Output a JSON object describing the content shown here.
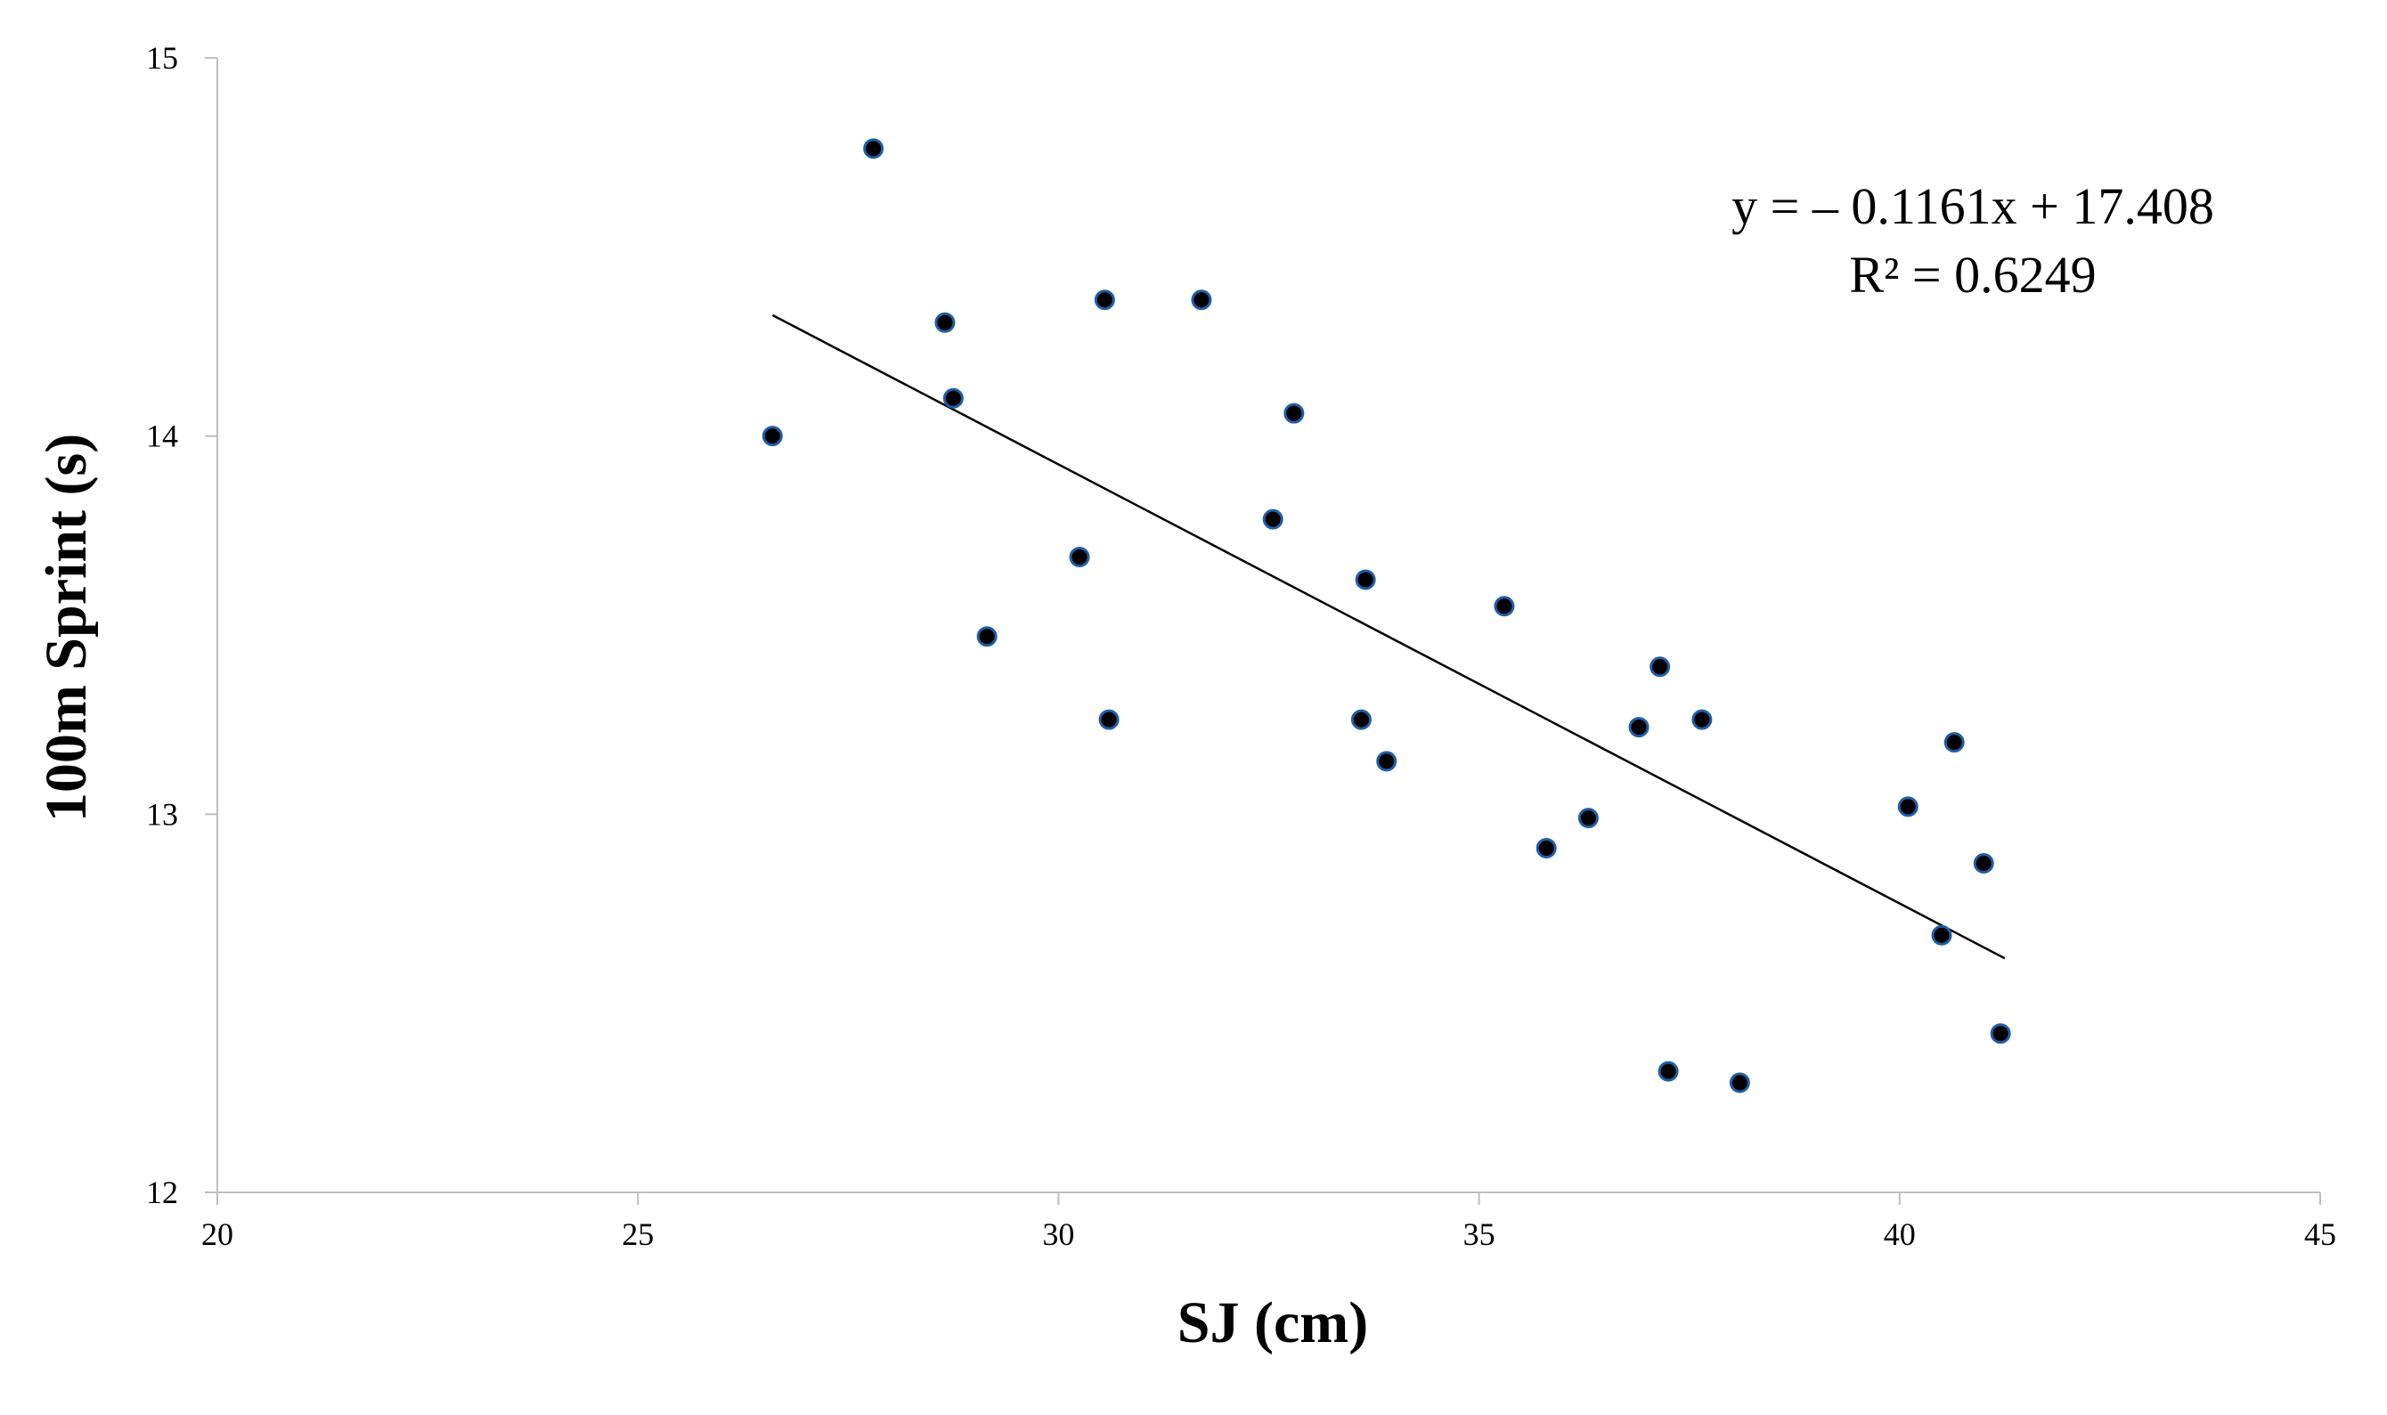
{
  "chart_data": {
    "type": "scatter",
    "title": "",
    "xlabel": "SJ (cm)",
    "ylabel": "100m Sprint (s)",
    "xlim": [
      20,
      45
    ],
    "ylim": [
      12,
      15
    ],
    "xticks": [
      "20",
      "25",
      "30",
      "35",
      "40",
      "45"
    ],
    "yticks": [
      "12",
      "13",
      "14",
      "15"
    ],
    "grid": false,
    "points": [
      {
        "x": 26.6,
        "y": 14.0
      },
      {
        "x": 27.8,
        "y": 14.76
      },
      {
        "x": 28.65,
        "y": 14.3
      },
      {
        "x": 28.75,
        "y": 14.1
      },
      {
        "x": 29.15,
        "y": 13.47
      },
      {
        "x": 30.25,
        "y": 13.68
      },
      {
        "x": 30.55,
        "y": 14.36
      },
      {
        "x": 30.6,
        "y": 13.25
      },
      {
        "x": 31.7,
        "y": 14.36
      },
      {
        "x": 32.55,
        "y": 13.78
      },
      {
        "x": 32.8,
        "y": 14.06
      },
      {
        "x": 33.6,
        "y": 13.25
      },
      {
        "x": 33.65,
        "y": 13.62
      },
      {
        "x": 33.9,
        "y": 13.14
      },
      {
        "x": 35.3,
        "y": 13.55
      },
      {
        "x": 35.8,
        "y": 12.91
      },
      {
        "x": 36.3,
        "y": 12.99
      },
      {
        "x": 36.9,
        "y": 13.23
      },
      {
        "x": 37.15,
        "y": 13.39
      },
      {
        "x": 37.25,
        "y": 12.32
      },
      {
        "x": 37.65,
        "y": 13.25
      },
      {
        "x": 38.1,
        "y": 12.29
      },
      {
        "x": 40.1,
        "y": 13.02
      },
      {
        "x": 40.5,
        "y": 12.68
      },
      {
        "x": 40.65,
        "y": 13.19
      },
      {
        "x": 41.0,
        "y": 12.87
      },
      {
        "x": 41.2,
        "y": 12.42
      }
    ],
    "marker_fill": "#000000",
    "marker_edge": "#1f5fa8",
    "trendline": {
      "slope": -0.1161,
      "intercept": 17.408,
      "x_start": 26.6,
      "x_end": 41.25,
      "color": "#000000"
    },
    "annotations": {
      "equation": "y = – 0.1161x + 17.408",
      "r_squared": "R² = 0.6249"
    }
  }
}
